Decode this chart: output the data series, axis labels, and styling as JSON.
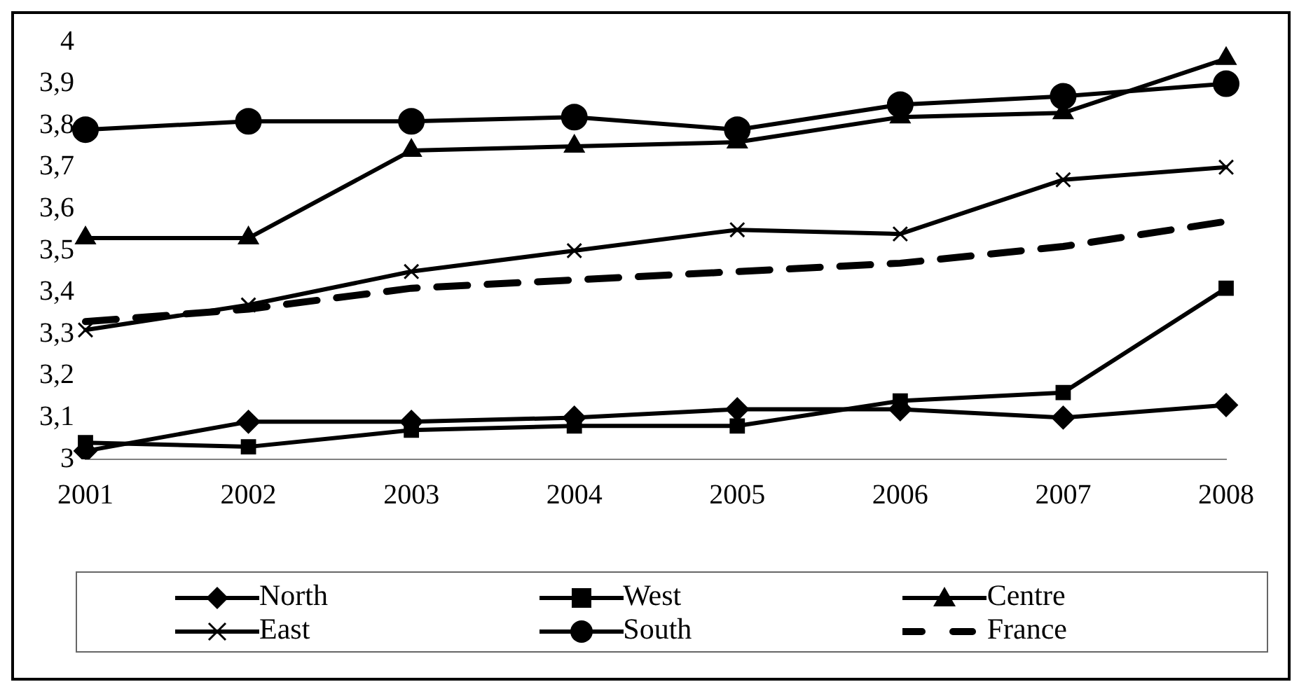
{
  "chart_data": {
    "type": "line",
    "categories": [
      "2001",
      "2002",
      "2003",
      "2004",
      "2005",
      "2006",
      "2007",
      "2008"
    ],
    "series": [
      {
        "name": "North",
        "color": "#000000",
        "marker": "diamond",
        "values": [
          3.02,
          3.09,
          3.09,
          3.1,
          3.12,
          3.12,
          3.1,
          3.13
        ]
      },
      {
        "name": "West",
        "color": "#000000",
        "marker": "square",
        "values": [
          3.04,
          3.03,
          3.07,
          3.08,
          3.08,
          3.14,
          3.16,
          3.41
        ]
      },
      {
        "name": "Centre",
        "color": "#000000",
        "marker": "triangle",
        "values": [
          3.53,
          3.53,
          3.74,
          3.75,
          3.76,
          3.82,
          3.83,
          3.96
        ]
      },
      {
        "name": "East",
        "color": "#000000",
        "marker": "cross",
        "values": [
          3.31,
          3.37,
          3.45,
          3.5,
          3.55,
          3.54,
          3.67,
          3.7
        ]
      },
      {
        "name": "South",
        "color": "#000000",
        "marker": "circle",
        "values": [
          3.79,
          3.81,
          3.81,
          3.82,
          3.79,
          3.85,
          3.87,
          3.9
        ]
      },
      {
        "name": "France",
        "color": "#000000",
        "marker": "none",
        "line_style": "dashed",
        "values": [
          3.33,
          3.36,
          3.41,
          3.43,
          3.45,
          3.47,
          3.51,
          3.57
        ]
      }
    ],
    "ylim": [
      3,
      4
    ],
    "yticks": [
      3,
      {
        "value": 3.1,
        "label": "3,1"
      },
      {
        "value": 3.2,
        "label": "3,2"
      },
      {
        "value": 3.3,
        "label": "3,3"
      },
      {
        "value": 3.4,
        "label": "3,4"
      },
      {
        "value": 3.5,
        "label": "3,5"
      },
      {
        "value": 3.6,
        "label": "3,6"
      },
      {
        "value": 3.7,
        "label": "3,7"
      },
      {
        "value": 3.8,
        "label": "3,8"
      },
      {
        "value": 3.9,
        "label": "3,9"
      },
      4
    ],
    "grid": false,
    "legend": "bottom"
  }
}
